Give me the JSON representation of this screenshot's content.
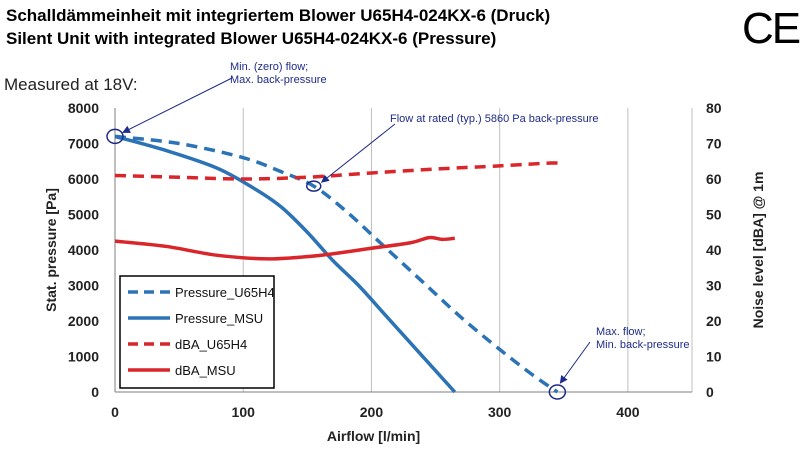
{
  "header": {
    "title_de": "Schalldämmeinheit mit integriertem Blower U65H4-024KX-6 (Druck)",
    "title_en": "Silent Unit with integrated Blower U65H4-024KX-6 (Pressure)",
    "ce_mark": "CE",
    "measured_note": "Measured at 18V:"
  },
  "chart_data": {
    "type": "line",
    "xlabel": "Airflow [l/min]",
    "ylabel_left": "Stat. pressure  [Pa]",
    "ylabel_right": "Noise level  [dBA] @ 1m",
    "xlim": [
      0,
      450
    ],
    "ylim_left": [
      0,
      8000
    ],
    "ylim_right": [
      0,
      80
    ],
    "x_ticks": [
      0,
      100,
      200,
      300,
      400
    ],
    "y_ticks_left": [
      0,
      1000,
      2000,
      3000,
      4000,
      5000,
      6000,
      7000,
      8000
    ],
    "y_ticks_right": [
      0,
      10,
      20,
      30,
      40,
      50,
      60,
      70,
      80
    ],
    "grid": "vertical",
    "legend_position": "bottom-left",
    "series": [
      {
        "name": "Pressure_U65H4",
        "axis": "left",
        "style": "dashed",
        "color": "#2b73b6",
        "points": [
          [
            0,
            7200
          ],
          [
            50,
            7000
          ],
          [
            100,
            6600
          ],
          [
            130,
            6200
          ],
          [
            155,
            5800
          ],
          [
            180,
            5100
          ],
          [
            210,
            4100
          ],
          [
            240,
            3100
          ],
          [
            270,
            2100
          ],
          [
            300,
            1200
          ],
          [
            325,
            500
          ],
          [
            345,
            0
          ]
        ]
      },
      {
        "name": "Pressure_MSU",
        "axis": "left",
        "style": "solid",
        "color": "#2b73b6",
        "points": [
          [
            0,
            7200
          ],
          [
            40,
            6800
          ],
          [
            80,
            6300
          ],
          [
            110,
            5700
          ],
          [
            130,
            5200
          ],
          [
            150,
            4500
          ],
          [
            170,
            3700
          ],
          [
            190,
            3000
          ],
          [
            210,
            2200
          ],
          [
            230,
            1400
          ],
          [
            250,
            600
          ],
          [
            265,
            0
          ]
        ]
      },
      {
        "name": "dBA_U65H4",
        "axis": "right",
        "style": "dashed",
        "color": "#d9262a",
        "points": [
          [
            0,
            61
          ],
          [
            50,
            60.5
          ],
          [
            100,
            60
          ],
          [
            150,
            60.5
          ],
          [
            200,
            61.7
          ],
          [
            250,
            62.8
          ],
          [
            300,
            63.7
          ],
          [
            340,
            64.5
          ],
          [
            350,
            64.3
          ]
        ]
      },
      {
        "name": "dBA_MSU",
        "axis": "right",
        "style": "solid",
        "color": "#d9262a",
        "points": [
          [
            0,
            42.5
          ],
          [
            40,
            41
          ],
          [
            80,
            38.5
          ],
          [
            120,
            37.5
          ],
          [
            160,
            38.5
          ],
          [
            200,
            40.5
          ],
          [
            230,
            42
          ],
          [
            245,
            43.5
          ],
          [
            255,
            43
          ],
          [
            265,
            43.3
          ]
        ]
      }
    ],
    "annotations": [
      {
        "text": [
          "Min. (zero) flow;",
          "Max. back-pressure"
        ],
        "target": [
          0,
          7200
        ]
      },
      {
        "text": [
          "Flow at rated (typ.) 5860 Pa back-pressure"
        ],
        "target": [
          155,
          5800
        ]
      },
      {
        "text": [
          "Max. flow;",
          "Min. back-pressure"
        ],
        "target": [
          345,
          0
        ]
      }
    ]
  }
}
